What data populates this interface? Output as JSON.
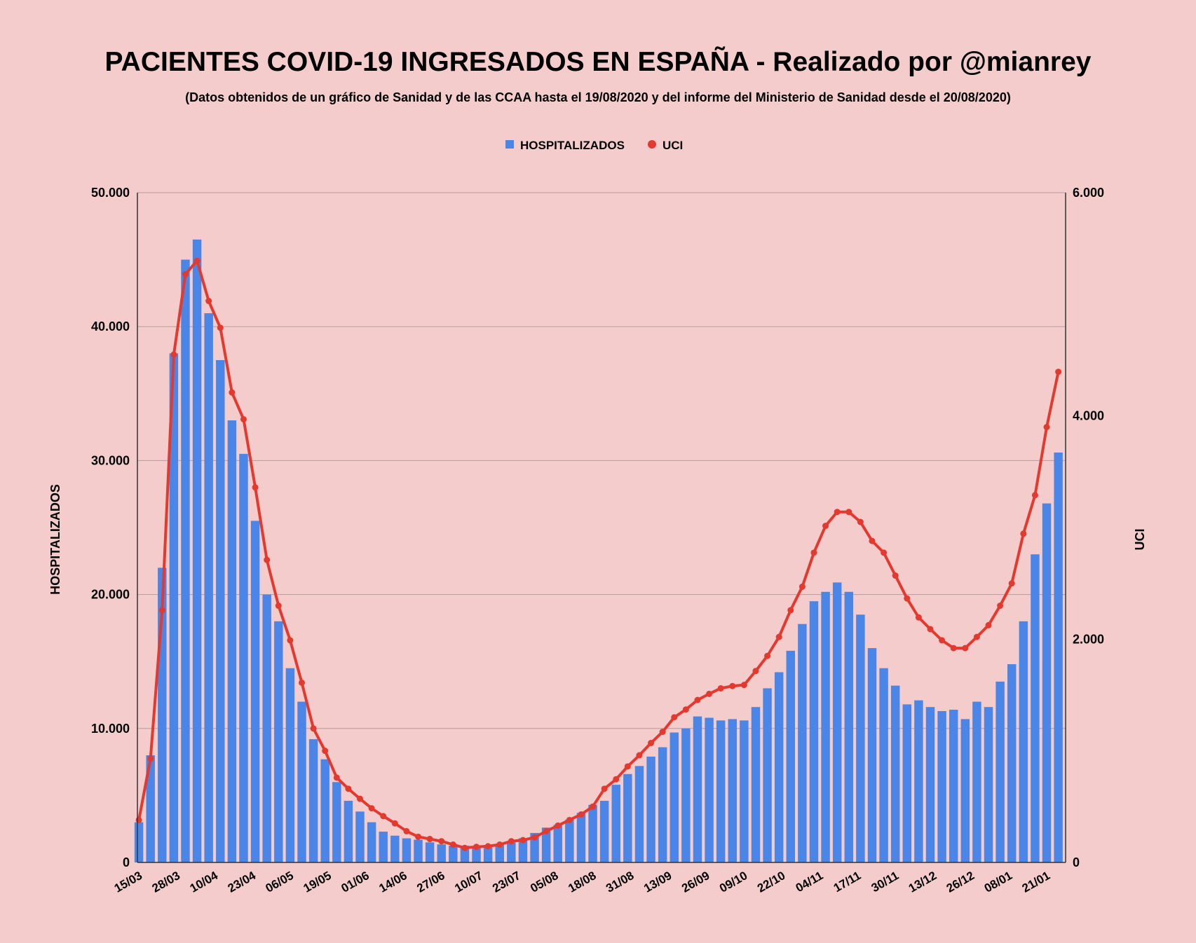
{
  "chart_data": {
    "type": "bar+line",
    "title": "PACIENTES COVID-19 INGRESADOS EN ESPAÑA - Realizado por @mianrey",
    "subtitle": "(Datos obtenidos de un gráfico de Sanidad y de las CCAA hasta el 19/08/2020 y del informe del Ministerio de Sanidad desde el 20/08/2020)",
    "ylabel_left": "HOSPITALIZADOS",
    "ylabel_right": "UCI",
    "legend_position": "top",
    "grid": true,
    "ylim_left": [
      0,
      50000
    ],
    "ylim_right": [
      0,
      6000
    ],
    "yticks_left": [
      "0",
      "10.000",
      "20.000",
      "30.000",
      "40.000",
      "50.000"
    ],
    "yticks_right": [
      "0",
      "2.000",
      "4.000",
      "6.000"
    ],
    "xrange": [
      "2020-03-15",
      "2021-01-27"
    ],
    "xtick_labels": [
      "15/03",
      "28/03",
      "10/04",
      "23/04",
      "06/05",
      "19/05",
      "01/06",
      "14/06",
      "27/06",
      "10/07",
      "23/07",
      "05/08",
      "18/08",
      "31/08",
      "13/09",
      "26/09",
      "09/10",
      "22/10",
      "04/11",
      "17/11",
      "30/11",
      "13/12",
      "26/12",
      "08/01",
      "21/01"
    ],
    "colors": {
      "background": "#f4cccc",
      "hospitalizados": "#4a86e8",
      "uci": "#e3392e",
      "grid": "#b89a9a"
    },
    "x": [
      "2020-03-15",
      "2020-03-19",
      "2020-03-23",
      "2020-03-27",
      "2020-03-31",
      "2020-04-04",
      "2020-04-08",
      "2020-04-12",
      "2020-04-16",
      "2020-04-20",
      "2020-04-24",
      "2020-04-28",
      "2020-05-02",
      "2020-05-06",
      "2020-05-10",
      "2020-05-14",
      "2020-05-18",
      "2020-05-22",
      "2020-05-26",
      "2020-05-30",
      "2020-06-03",
      "2020-06-07",
      "2020-06-11",
      "2020-06-15",
      "2020-06-19",
      "2020-06-23",
      "2020-06-27",
      "2020-07-01",
      "2020-07-05",
      "2020-07-09",
      "2020-07-13",
      "2020-07-17",
      "2020-07-21",
      "2020-07-25",
      "2020-07-29",
      "2020-08-02",
      "2020-08-06",
      "2020-08-10",
      "2020-08-14",
      "2020-08-18",
      "2020-08-22",
      "2020-08-26",
      "2020-08-30",
      "2020-09-03",
      "2020-09-07",
      "2020-09-11",
      "2020-09-15",
      "2020-09-19",
      "2020-09-23",
      "2020-09-27",
      "2020-10-01",
      "2020-10-05",
      "2020-10-09",
      "2020-10-13",
      "2020-10-17",
      "2020-10-21",
      "2020-10-25",
      "2020-10-29",
      "2020-11-02",
      "2020-11-06",
      "2020-11-10",
      "2020-11-14",
      "2020-11-18",
      "2020-11-22",
      "2020-11-26",
      "2020-11-30",
      "2020-12-04",
      "2020-12-08",
      "2020-12-12",
      "2020-12-16",
      "2020-12-20",
      "2020-12-24",
      "2020-12-28",
      "2021-01-01",
      "2021-01-05",
      "2021-01-09",
      "2021-01-13",
      "2021-01-17",
      "2021-01-21",
      "2021-01-25"
    ],
    "series": [
      {
        "name": "HOSPITALIZADOS",
        "axis": "left",
        "type": "bar",
        "values": [
          3000,
          8000,
          22000,
          38000,
          45000,
          46500,
          41000,
          37500,
          33000,
          30500,
          25500,
          20000,
          18000,
          14500,
          12000,
          9200,
          7700,
          6000,
          4600,
          3800,
          3000,
          2300,
          2000,
          1800,
          1700,
          1500,
          1350,
          1250,
          1250,
          1200,
          1300,
          1350,
          1500,
          1800,
          2200,
          2600,
          2800,
          3200,
          3700,
          4300,
          4600,
          5800,
          6600,
          7200,
          7900,
          8600,
          9700,
          10000,
          10900,
          10800,
          10600,
          10700,
          10600,
          11600,
          13000,
          14200,
          15800,
          17800,
          19500,
          20200,
          20900,
          20200,
          18500,
          16000,
          14500,
          13200,
          11800,
          12100,
          11600,
          11300,
          11400,
          10700,
          12000,
          11600,
          13500,
          14800,
          18000,
          23000,
          26800,
          30600
        ]
      },
      {
        "name": "UCI",
        "axis": "right",
        "type": "line",
        "values": [
          380,
          930,
          2260,
          4550,
          5270,
          5390,
          5030,
          4790,
          4210,
          3970,
          3360,
          2710,
          2300,
          1990,
          1610,
          1200,
          1000,
          760,
          660,
          570,
          485,
          415,
          350,
          280,
          230,
          210,
          190,
          160,
          130,
          140,
          145,
          160,
          190,
          200,
          225,
          280,
          330,
          380,
          430,
          500,
          660,
          745,
          860,
          960,
          1070,
          1170,
          1300,
          1370,
          1455,
          1510,
          1560,
          1580,
          1590,
          1715,
          1850,
          2020,
          2260,
          2470,
          2775,
          3015,
          3140,
          3140,
          3050,
          2880,
          2775,
          2570,
          2365,
          2195,
          2090,
          1990,
          1920,
          1920,
          2020,
          2125,
          2300,
          2500,
          2945,
          3290,
          3900,
          4395
        ]
      }
    ]
  }
}
